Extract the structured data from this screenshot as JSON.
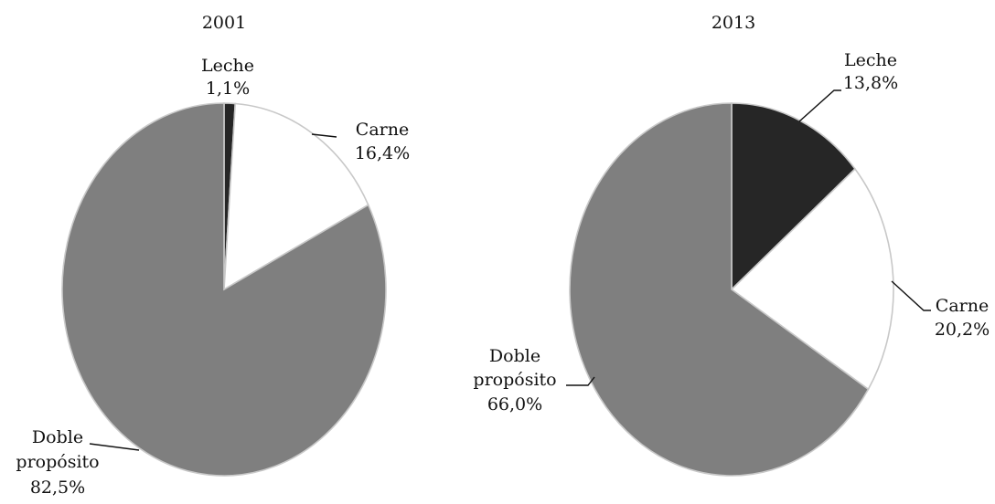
{
  "chart_data": [
    {
      "type": "pie",
      "title": "2001",
      "slices": [
        {
          "name": "Leche",
          "value": 1.1,
          "label": "1,1%",
          "color": "#262626"
        },
        {
          "name": "Carne",
          "value": 16.4,
          "label": "16,4%",
          "color": "#ffffff"
        },
        {
          "name": "Doble propósito",
          "value": 82.5,
          "label": "82,5%",
          "color": "#7f7f7f"
        }
      ]
    },
    {
      "type": "pie",
      "title": "2013",
      "slices": [
        {
          "name": "Leche",
          "value": 13.8,
          "label": "13,8%",
          "color": "#262626"
        },
        {
          "name": "Carne",
          "value": 20.2,
          "label": "20,2%",
          "color": "#ffffff"
        },
        {
          "name": "Doble propósito",
          "value": 66.0,
          "label": "66,0%",
          "color": "#7f7f7f"
        }
      ]
    }
  ]
}
